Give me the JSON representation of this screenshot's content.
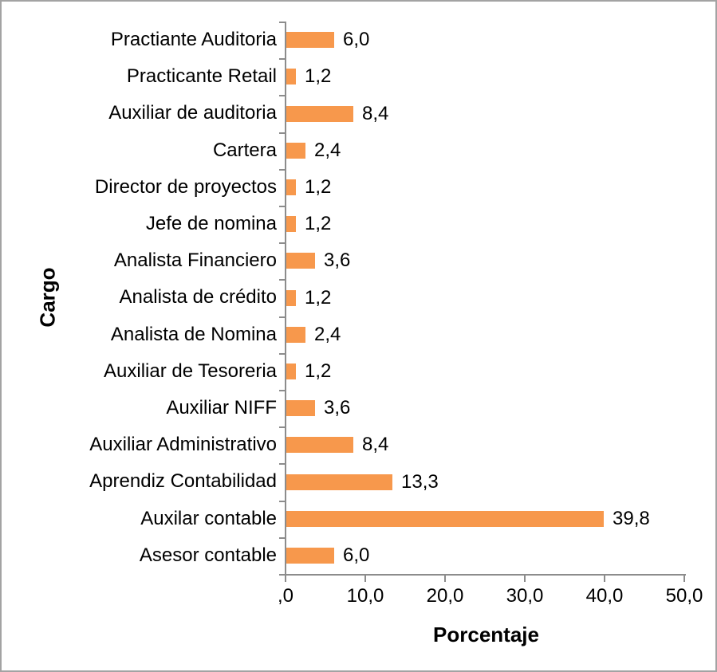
{
  "chart_data": {
    "type": "bar",
    "orientation": "horizontal",
    "title": "",
    "xlabel": "Porcentaje",
    "ylabel": "Cargo",
    "categories": [
      "Practiante Auditoria",
      "Practicante Retail",
      "Auxiliar de auditoria",
      "Cartera",
      "Director de proyectos",
      "Jefe de nomina",
      "Analista Financiero",
      "Analista de crédito",
      "Analista de Nomina",
      "Auxiliar de Tesoreria",
      "Auxiliar NIFF",
      "Auxiliar Administrativo",
      "Aprendiz Contabilidad",
      "Auxilar contable",
      "Asesor contable"
    ],
    "values": [
      6.0,
      1.2,
      8.4,
      2.4,
      1.2,
      1.2,
      3.6,
      1.2,
      2.4,
      1.2,
      3.6,
      8.4,
      13.3,
      39.8,
      6.0
    ],
    "value_labels": [
      "6,0",
      "1,2",
      "8,4",
      "2,4",
      "1,2",
      "1,2",
      "3,6",
      "1,2",
      "2,4",
      "1,2",
      "3,6",
      "8,4",
      "13,3",
      "39,8",
      "6,0"
    ],
    "x_ticks": [
      ",0",
      "10,0",
      "20,0",
      "30,0",
      "40,0",
      "50,0"
    ],
    "x_tick_values": [
      0,
      10,
      20,
      30,
      40,
      50
    ],
    "xlim": [
      0,
      50
    ],
    "grid": false,
    "legend": false,
    "bar_color": "#F7984C",
    "axis_color": "#8C8C8C",
    "text_color": "#000000"
  }
}
